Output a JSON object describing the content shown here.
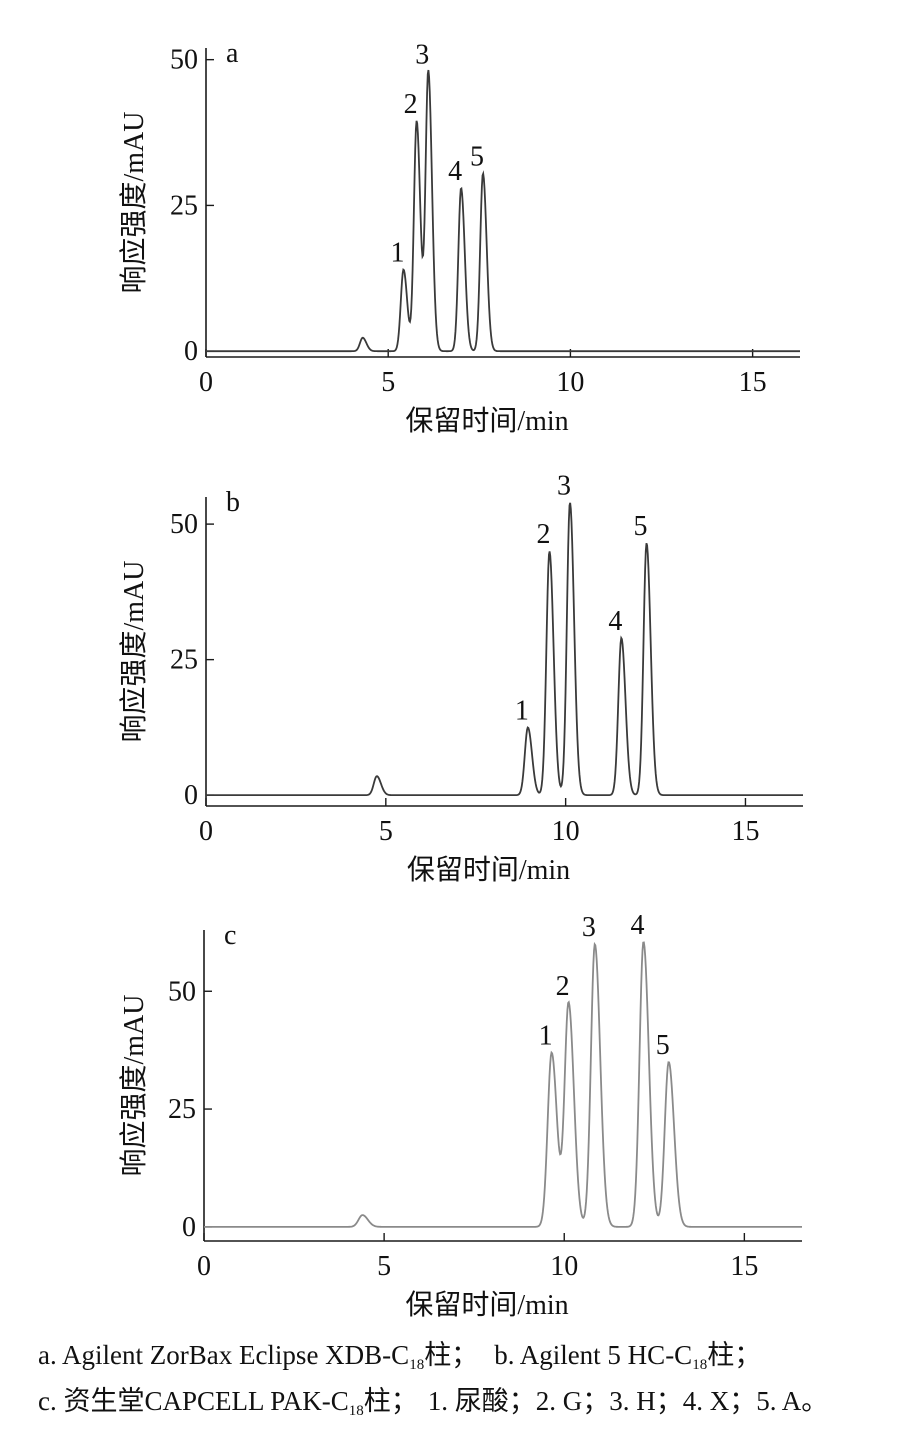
{
  "chart_data": [
    {
      "type": "line",
      "panel_label": "a",
      "ylabel": "响应强度/mAU",
      "xlabel": "保留时间/min",
      "xlim": [
        0,
        16.3
      ],
      "ylim": [
        -1,
        52
      ],
      "x_ticks": [
        0,
        5,
        10,
        15
      ],
      "x_tick_labels": [
        "0",
        "5",
        "10",
        "15"
      ],
      "y_ticks": [
        0,
        25,
        50
      ],
      "y_tick_labels": [
        "0",
        "25",
        "50"
      ],
      "grid": false,
      "peaks": [
        {
          "label": "",
          "x": 4.3,
          "y": 2.3
        },
        {
          "label": "1",
          "x": 5.42,
          "y": 14
        },
        {
          "label": "2",
          "x": 5.78,
          "y": 39.5
        },
        {
          "label": "3",
          "x": 6.1,
          "y": 48
        },
        {
          "label": "4",
          "x": 7.0,
          "y": 28
        },
        {
          "label": "5",
          "x": 7.6,
          "y": 30.5
        }
      ]
    },
    {
      "type": "line",
      "panel_label": "b",
      "ylabel": "响应强度/mAU",
      "xlabel": "保留时间/min",
      "xlim": [
        0,
        16.6
      ],
      "ylim": [
        -2,
        55
      ],
      "x_ticks": [
        0,
        5,
        10,
        15
      ],
      "x_tick_labels": [
        "0",
        "5",
        "10",
        "15"
      ],
      "y_ticks": [
        0,
        25,
        50
      ],
      "y_tick_labels": [
        "0",
        "25",
        "50"
      ],
      "grid": false,
      "peaks": [
        {
          "label": "",
          "x": 4.75,
          "y": 3.5
        },
        {
          "label": "1",
          "x": 8.95,
          "y": 12.5
        },
        {
          "label": "2",
          "x": 9.55,
          "y": 45
        },
        {
          "label": "3",
          "x": 10.12,
          "y": 54
        },
        {
          "label": "4",
          "x": 11.55,
          "y": 29
        },
        {
          "label": "5",
          "x": 12.25,
          "y": 46.5
        }
      ]
    },
    {
      "type": "line",
      "panel_label": "c",
      "ylabel": "响应强度/mAU",
      "xlabel": "保留时间/min",
      "xlim": [
        0,
        16.6
      ],
      "ylim": [
        -3,
        63
      ],
      "x_ticks": [
        0,
        5,
        10,
        15
      ],
      "x_tick_labels": [
        "0",
        "5",
        "10",
        "15"
      ],
      "y_ticks": [
        0,
        25,
        50
      ],
      "y_tick_labels": [
        "0",
        "25",
        "50"
      ],
      "grid": false,
      "peaks": [
        {
          "label": "",
          "x": 4.4,
          "y": 2.5
        },
        {
          "label": "1",
          "x": 9.65,
          "y": 37
        },
        {
          "label": "2",
          "x": 10.12,
          "y": 47.5
        },
        {
          "label": "3",
          "x": 10.85,
          "y": 60
        },
        {
          "label": "4",
          "x": 12.2,
          "y": 60.5
        },
        {
          "label": "5",
          "x": 12.9,
          "y": 35
        }
      ]
    }
  ],
  "caption": {
    "line1": {
      "a_pre": "a. Agilent ZorBax Eclipse XDB-C",
      "a_sub": "18",
      "a_post": "柱；",
      "b_pre": "b. Agilent 5 HC-C",
      "b_sub": "18",
      "b_post": "柱；"
    },
    "line2": {
      "c_pre": "c. 资生堂CAPCELL PAK-C",
      "c_sub": "18",
      "c_post": "柱；",
      "items": "1. 尿酸；2. G；3. H；4. X；5. A。"
    }
  },
  "colors": {
    "trace": "#3a3a3a",
    "trace_c": "#8a8a8a",
    "axis": "#1a1a1a"
  }
}
